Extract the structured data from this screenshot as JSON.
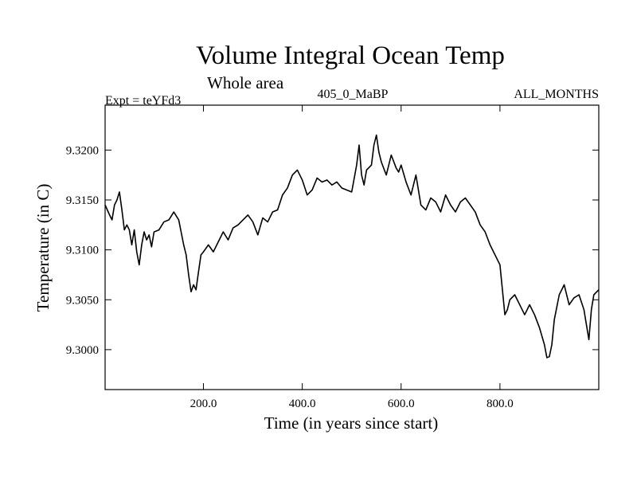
{
  "chart_data": {
    "type": "line",
    "title": "Volume Integral Ocean Temp",
    "subtitle": "Whole area",
    "info_left": "Expt = teYFd3",
    "info_center": "405_0_MaBP",
    "info_right": "ALL_MONTHS",
    "xlabel": "Time (in years since start)",
    "ylabel": "Temperature (in C)",
    "xlim": [
      1,
      1000
    ],
    "ylim": [
      9.296,
      9.3245
    ],
    "x_ticks": [
      200,
      400,
      600,
      800
    ],
    "x_tick_labels": [
      "200.0",
      "400.0",
      "600.0",
      "800.0"
    ],
    "y_ticks": [
      9.3,
      9.305,
      9.31,
      9.315,
      9.32
    ],
    "y_tick_labels": [
      "9.3000",
      "9.3050",
      "9.3100",
      "9.3150",
      "9.3200"
    ],
    "series": [
      {
        "name": "Volume Integral Ocean Temp",
        "color": "#000000",
        "x": [
          1,
          10,
          15,
          20,
          25,
          30,
          35,
          40,
          45,
          50,
          55,
          60,
          65,
          70,
          75,
          80,
          85,
          90,
          95,
          100,
          110,
          120,
          130,
          140,
          150,
          160,
          165,
          170,
          175,
          180,
          185,
          190,
          195,
          200,
          210,
          220,
          230,
          240,
          250,
          260,
          270,
          280,
          290,
          300,
          310,
          320,
          330,
          340,
          350,
          360,
          370,
          380,
          390,
          400,
          410,
          420,
          430,
          440,
          450,
          460,
          470,
          480,
          490,
          500,
          510,
          515,
          520,
          525,
          530,
          540,
          545,
          550,
          555,
          560,
          570,
          580,
          590,
          595,
          600,
          610,
          620,
          630,
          640,
          650,
          660,
          670,
          680,
          690,
          700,
          710,
          720,
          730,
          740,
          750,
          760,
          770,
          780,
          790,
          800,
          805,
          810,
          815,
          820,
          830,
          840,
          850,
          860,
          870,
          880,
          890,
          895,
          900,
          905,
          910,
          920,
          930,
          940,
          950,
          960,
          970,
          975,
          980,
          985,
          990,
          1000
        ],
        "values": [
          9.3145,
          9.3135,
          9.313,
          9.3145,
          9.315,
          9.3158,
          9.314,
          9.312,
          9.3125,
          9.312,
          9.3105,
          9.312,
          9.3098,
          9.3085,
          9.3105,
          9.3118,
          9.311,
          9.3115,
          9.3103,
          9.3118,
          9.312,
          9.3128,
          9.313,
          9.3138,
          9.313,
          9.3105,
          9.3095,
          9.3075,
          9.3058,
          9.3065,
          9.306,
          9.3078,
          9.3095,
          9.3098,
          9.3105,
          9.3098,
          9.3108,
          9.3118,
          9.311,
          9.3122,
          9.3125,
          9.313,
          9.3135,
          9.3128,
          9.3115,
          9.3132,
          9.3128,
          9.3138,
          9.314,
          9.3155,
          9.3162,
          9.3175,
          9.318,
          9.317,
          9.3155,
          9.316,
          9.3172,
          9.3168,
          9.317,
          9.3165,
          9.3168,
          9.3162,
          9.316,
          9.3158,
          9.3185,
          9.3205,
          9.3175,
          9.3165,
          9.318,
          9.3185,
          9.3205,
          9.3215,
          9.3198,
          9.3188,
          9.3175,
          9.3195,
          9.3182,
          9.3178,
          9.3185,
          9.3168,
          9.3155,
          9.3175,
          9.3145,
          9.314,
          9.3152,
          9.3148,
          9.3138,
          9.3155,
          9.3145,
          9.3138,
          9.3148,
          9.3152,
          9.3145,
          9.3138,
          9.3125,
          9.3118,
          9.3105,
          9.3095,
          9.3085,
          9.306,
          9.3035,
          9.304,
          9.305,
          9.3055,
          9.3045,
          9.3035,
          9.3045,
          9.3035,
          9.3022,
          9.3005,
          9.2992,
          9.2993,
          9.3005,
          9.303,
          9.3055,
          9.3065,
          9.3045,
          9.3052,
          9.3055,
          9.304,
          9.3025,
          9.301,
          9.304,
          9.3055,
          9.306
        ]
      }
    ]
  }
}
